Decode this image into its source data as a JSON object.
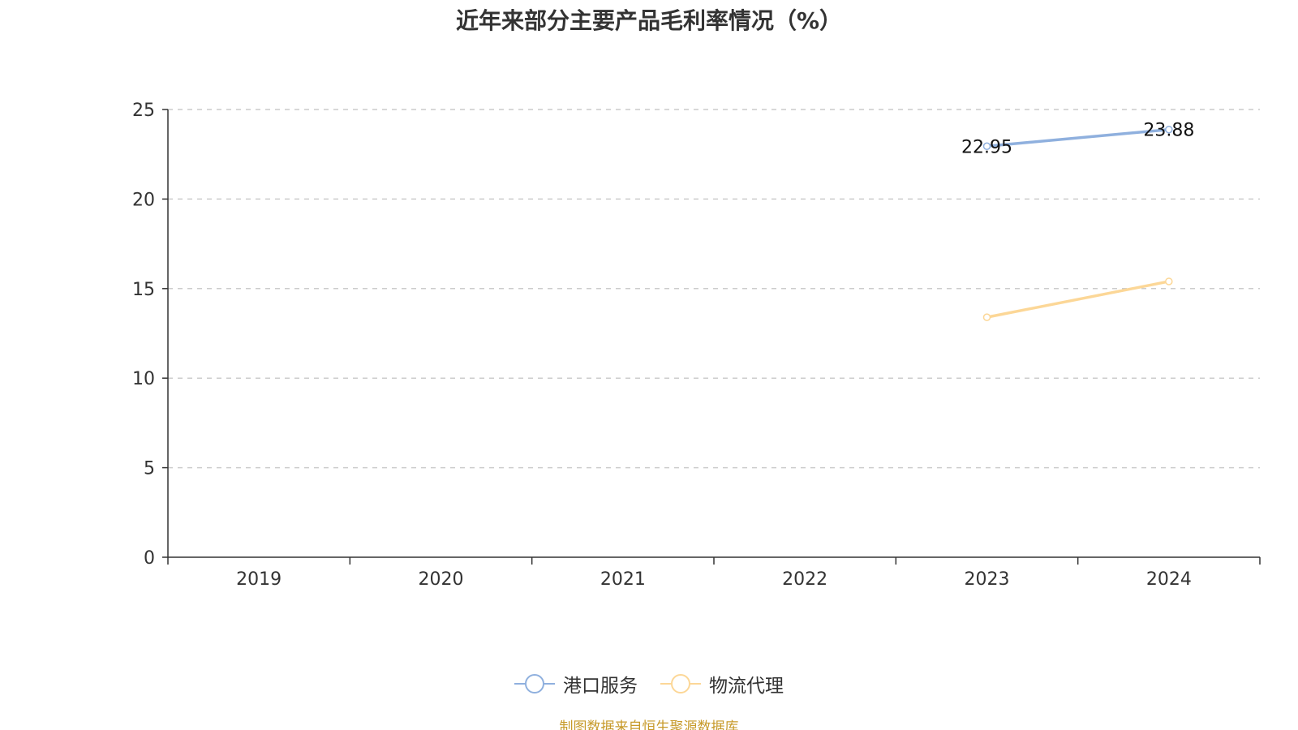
{
  "source_note": "制图数据来自恒生聚源数据库",
  "chart_data": {
    "type": "line",
    "title": "近年来部分主要产品毛利率情况（%）",
    "categories": [
      "2019",
      "2020",
      "2021",
      "2022",
      "2023",
      "2024"
    ],
    "ylim": [
      0,
      25
    ],
    "yticks": [
      "0",
      "5",
      "10",
      "15",
      "20",
      "25"
    ],
    "grid": true,
    "legend_position": "bottom",
    "series": [
      {
        "name": "港口服务",
        "color": "#8fb0de",
        "values": [
          null,
          null,
          null,
          null,
          22.95,
          23.88
        ],
        "labels": [
          null,
          null,
          null,
          null,
          "22.95",
          "23.88"
        ]
      },
      {
        "name": "物流代理",
        "color": "#fcd797",
        "values": [
          null,
          null,
          null,
          null,
          13.4,
          15.4
        ],
        "labels": [
          null,
          null,
          null,
          null,
          null,
          null
        ]
      }
    ]
  }
}
